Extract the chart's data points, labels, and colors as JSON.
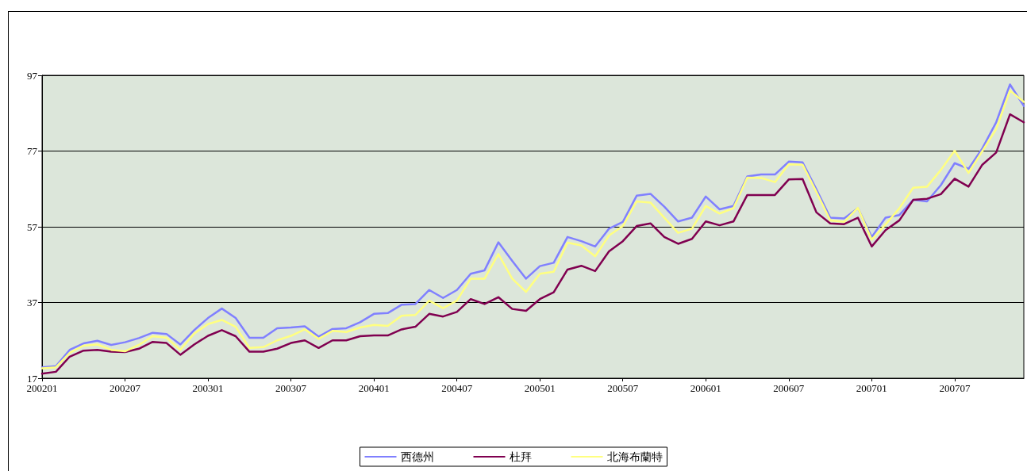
{
  "chart_data": {
    "type": "line",
    "categories": [
      "200201",
      null,
      null,
      null,
      null,
      null,
      "200207",
      null,
      null,
      null,
      null,
      null,
      "200301",
      null,
      null,
      null,
      null,
      null,
      "200307",
      null,
      null,
      null,
      null,
      null,
      "200401",
      null,
      null,
      null,
      null,
      null,
      "200407",
      null,
      null,
      null,
      null,
      null,
      "200501",
      null,
      null,
      null,
      null,
      null,
      "200507",
      null,
      null,
      null,
      null,
      null,
      "200601",
      null,
      null,
      null,
      null,
      null,
      "200607",
      null,
      null,
      null,
      null,
      null,
      "200701",
      null,
      null,
      null,
      null,
      null,
      "200707",
      null,
      null,
      null,
      null,
      null
    ],
    "series": [
      {
        "name": "西德州",
        "color": "#8080ff",
        "values": [
          19.9,
          20.2,
          24.5,
          26.2,
          26.9,
          25.8,
          26.5,
          27.6,
          29.0,
          28.7,
          25.9,
          29.7,
          32.9,
          35.4,
          32.9,
          27.7,
          27.7,
          30.2,
          30.4,
          30.7,
          28.0,
          30.0,
          30.2,
          31.8,
          34.0,
          34.2,
          36.4,
          36.6,
          40.3,
          38.2,
          40.3,
          44.6,
          45.5,
          52.9,
          48.0,
          43.3,
          46.6,
          47.5,
          54.3,
          53.2,
          51.8,
          56.5,
          58.3,
          65.2,
          65.7,
          62.3,
          58.4,
          59.4,
          65.0,
          61.6,
          62.5,
          70.3,
          70.8,
          70.8,
          74.2,
          74.0,
          66.9,
          59.4,
          59.2,
          61.9,
          54.3,
          59.4,
          60.1,
          64.1,
          63.7,
          68.0,
          73.8,
          72.3,
          77.7,
          84.6,
          94.6,
          88.9
        ]
      },
      {
        "name": "杜拜",
        "color": "#800050",
        "values": [
          18.2,
          18.7,
          22.7,
          24.3,
          24.5,
          24.0,
          23.9,
          24.8,
          26.6,
          26.3,
          23.2,
          25.9,
          28.2,
          29.7,
          28.1,
          24.0,
          24.0,
          24.8,
          26.3,
          27.0,
          25.0,
          27.0,
          27.0,
          28.1,
          28.3,
          28.3,
          29.9,
          30.6,
          34.0,
          33.3,
          34.5,
          37.9,
          36.6,
          38.4,
          35.3,
          34.8,
          37.9,
          39.7,
          45.7,
          46.7,
          45.3,
          50.5,
          53.2,
          57.2,
          57.9,
          54.3,
          52.5,
          53.8,
          58.4,
          57.4,
          58.4,
          65.4,
          65.4,
          65.4,
          69.5,
          69.6,
          60.8,
          57.9,
          57.7,
          59.4,
          51.8,
          56.1,
          58.7,
          64.1,
          64.4,
          65.6,
          69.7,
          67.6,
          73.4,
          76.6,
          86.7,
          84.6
        ]
      },
      {
        "name": "北海布蘭特",
        "color": "#ffff80",
        "values": [
          19.6,
          19.9,
          23.7,
          25.6,
          25.9,
          24.5,
          24.1,
          25.8,
          28.1,
          27.7,
          24.5,
          28.8,
          31.3,
          32.4,
          30.6,
          25.0,
          25.2,
          27.0,
          28.2,
          29.9,
          27.4,
          29.5,
          29.2,
          30.4,
          31.1,
          30.8,
          33.5,
          33.7,
          37.5,
          35.5,
          37.5,
          43.3,
          43.3,
          49.8,
          43.3,
          39.8,
          44.6,
          45.1,
          52.8,
          52.1,
          49.2,
          54.7,
          57.2,
          63.7,
          63.4,
          59.4,
          55.4,
          56.5,
          62.5,
          60.5,
          61.9,
          70.0,
          69.9,
          68.8,
          73.5,
          73.4,
          66.2,
          58.7,
          58.3,
          62.0,
          53.6,
          57.6,
          61.9,
          67.3,
          67.6,
          72.0,
          77.1,
          71.2,
          77.0,
          82.8,
          93.0,
          90.0
        ]
      }
    ],
    "ylim": [
      17,
      97
    ],
    "yticks": [
      17,
      37,
      57,
      77,
      97
    ],
    "grid": "y",
    "legend": "bottom",
    "marker": "none",
    "line_style": "solid"
  }
}
